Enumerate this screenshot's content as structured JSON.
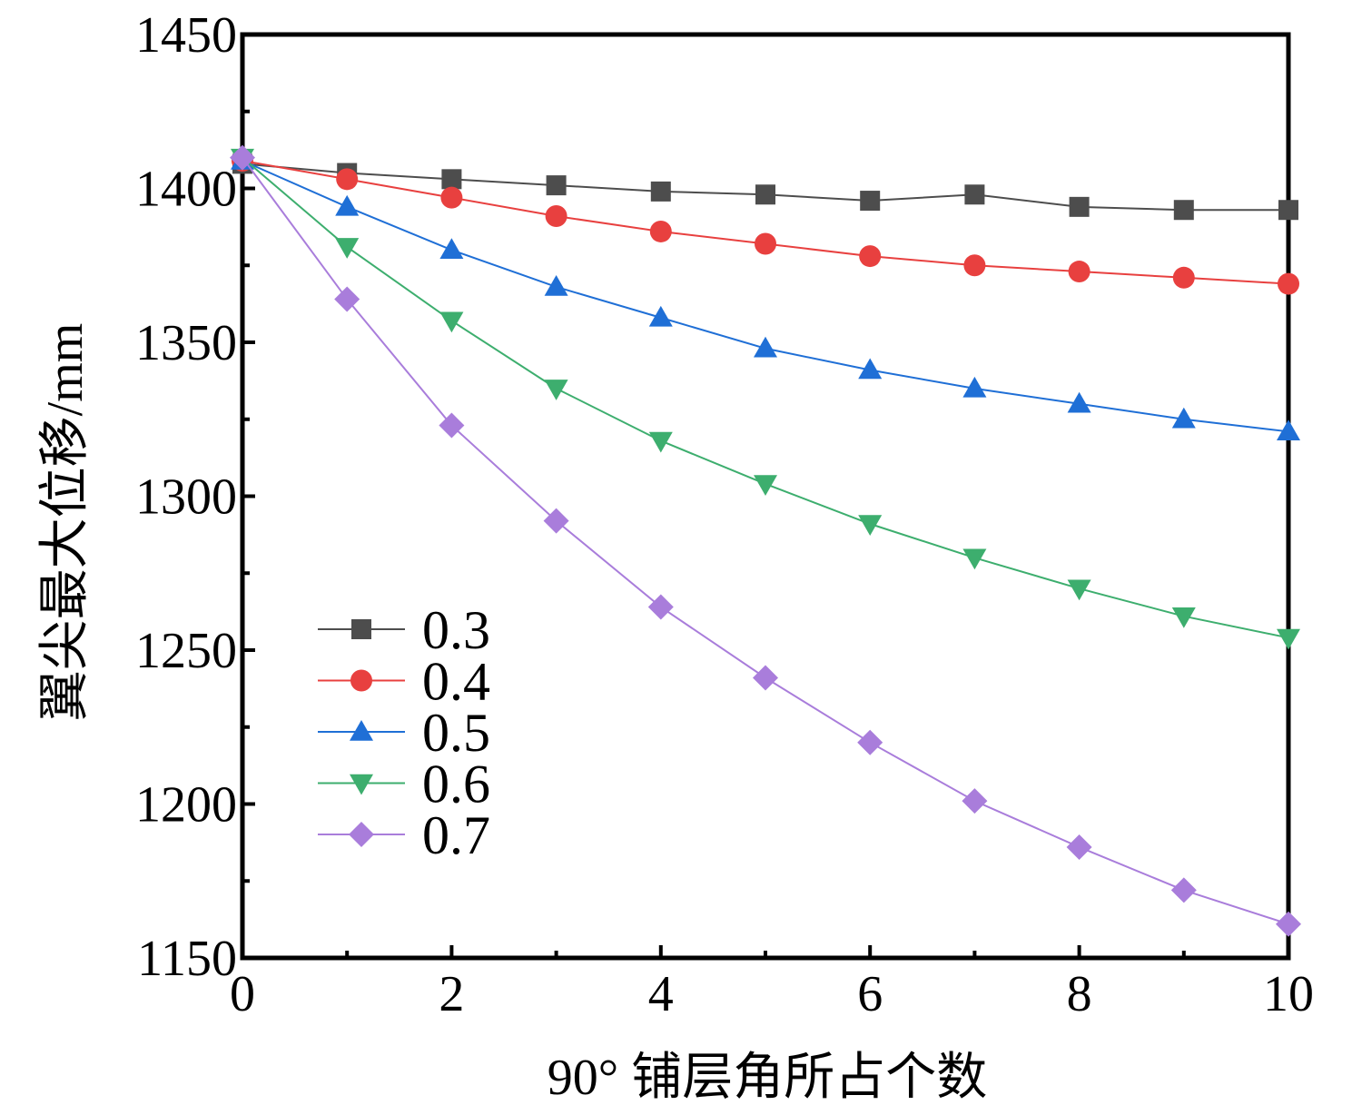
{
  "chart_data": {
    "type": "line",
    "xlabel": "90°  铺层角所占个数",
    "ylabel": "翼尖最大位移/mm",
    "xlim": [
      0,
      10
    ],
    "ylim": [
      1150,
      1450
    ],
    "x_ticks": [
      "0",
      "2",
      "4",
      "6",
      "8",
      "10"
    ],
    "y_ticks": [
      "1150",
      "1200",
      "1250",
      "1300",
      "1350",
      "1400",
      "1450"
    ],
    "x_tick_values": [
      0,
      2,
      4,
      6,
      8,
      10
    ],
    "y_tick_values": [
      1150,
      1200,
      1250,
      1300,
      1350,
      1400,
      1450
    ],
    "x_minor_ticks": [
      1,
      3,
      5,
      7,
      9
    ],
    "y_minor_ticks": [
      1175,
      1225,
      1275,
      1325,
      1375,
      1425
    ],
    "grid": false,
    "legend_position": "lower-left",
    "x": [
      0,
      1,
      2,
      3,
      4,
      5,
      6,
      7,
      8,
      9,
      10
    ],
    "series": [
      {
        "name": "0.3",
        "color": "#4d4d4d",
        "marker": "square",
        "values": [
          1408,
          1405,
          1403,
          1401,
          1399,
          1398,
          1396,
          1398,
          1394,
          1393,
          1393
        ]
      },
      {
        "name": "0.4",
        "color": "#e8403f",
        "marker": "circle",
        "values": [
          1409,
          1403,
          1397,
          1391,
          1386,
          1382,
          1378,
          1375,
          1373,
          1371,
          1369
        ]
      },
      {
        "name": "0.5",
        "color": "#1f6fd6",
        "marker": "triangle-up",
        "values": [
          1409,
          1394,
          1380,
          1368,
          1358,
          1348,
          1341,
          1335,
          1330,
          1325,
          1321
        ]
      },
      {
        "name": "0.6",
        "color": "#3dae6e",
        "marker": "triangle-down",
        "values": [
          1410,
          1381,
          1357,
          1335,
          1318,
          1304,
          1291,
          1280,
          1270,
          1261,
          1254
        ]
      },
      {
        "name": "0.7",
        "color": "#a97ddb",
        "marker": "diamond",
        "values": [
          1410,
          1364,
          1323,
          1292,
          1264,
          1241,
          1220,
          1201,
          1186,
          1172,
          1161
        ]
      }
    ]
  }
}
